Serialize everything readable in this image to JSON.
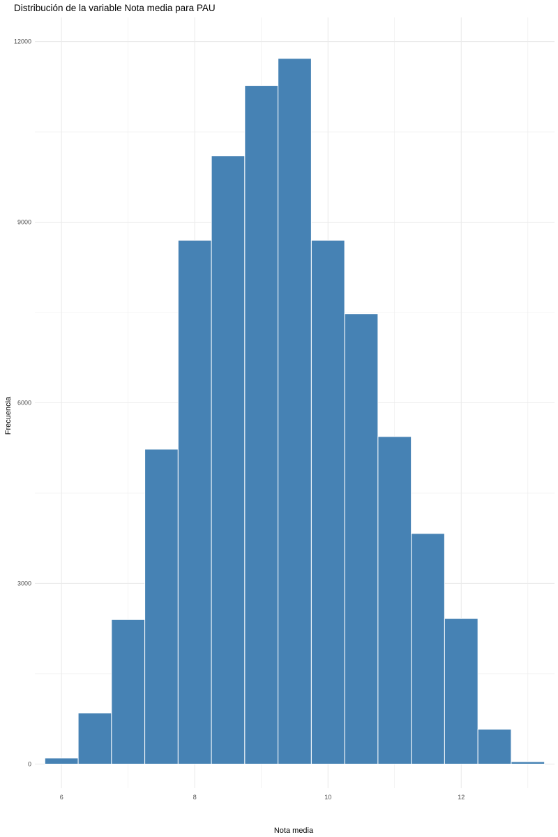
{
  "chart_data": {
    "type": "bar",
    "title": "Distribución de la variable Nota media para PAU",
    "xlabel": "Nota media",
    "ylabel": "Frecuencia",
    "bin_width": 0.5,
    "bin_centers": [
      6.0,
      6.5,
      7.0,
      7.5,
      8.0,
      8.5,
      9.0,
      9.5,
      10.0,
      10.5,
      11.0,
      11.5,
      12.0,
      12.5,
      13.0
    ],
    "values": [
      100,
      850,
      2400,
      5230,
      8700,
      10100,
      11270,
      11720,
      8700,
      7480,
      5440,
      3830,
      2420,
      580,
      40
    ],
    "xlim": [
      5.6,
      13.4
    ],
    "ylim": [
      -400,
      12400
    ],
    "x_ticks": [
      6,
      8,
      10,
      12
    ],
    "y_ticks": [
      0,
      3000,
      6000,
      9000,
      12000
    ],
    "grid": true,
    "legend": "none",
    "colors": {
      "bar_fill": "#4682b4",
      "bar_outline": "#ffffff",
      "grid": "#ebebeb"
    }
  }
}
